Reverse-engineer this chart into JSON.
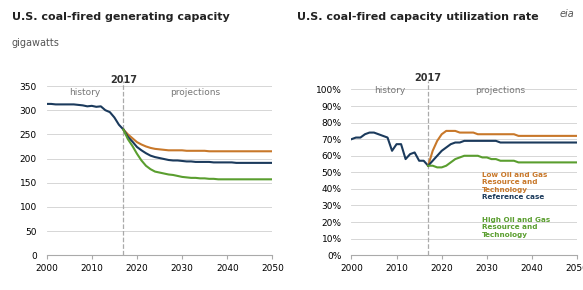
{
  "title1": "U.S. coal-fired generating capacity",
  "ylabel1": "gigawatts",
  "title2": "U.S. coal-fired capacity utilization rate",
  "split_year": 2017,
  "colors": {
    "low": "#c8782a",
    "reference": "#1b3a5c",
    "high": "#5a9e2f"
  },
  "cap_years_history": [
    2000,
    2001,
    2002,
    2003,
    2004,
    2005,
    2006,
    2007,
    2008,
    2009,
    2010,
    2011,
    2012,
    2013,
    2014,
    2015,
    2016,
    2017
  ],
  "cap_history": [
    313,
    313,
    312,
    312,
    312,
    312,
    312,
    311,
    310,
    308,
    309,
    307,
    308,
    300,
    296,
    285,
    270,
    260
  ],
  "cap_years_proj": [
    2017,
    2018,
    2019,
    2020,
    2021,
    2022,
    2023,
    2024,
    2025,
    2026,
    2027,
    2028,
    2029,
    2030,
    2031,
    2032,
    2033,
    2034,
    2035,
    2036,
    2037,
    2038,
    2039,
    2040,
    2041,
    2042,
    2043,
    2044,
    2045,
    2046,
    2047,
    2048,
    2049,
    2050
  ],
  "cap_low": [
    260,
    250,
    242,
    234,
    229,
    225,
    222,
    220,
    219,
    218,
    217,
    217,
    217,
    217,
    216,
    216,
    216,
    216,
    216,
    215,
    215,
    215,
    215,
    215,
    215,
    215,
    215,
    215,
    215,
    215,
    215,
    215,
    215,
    215
  ],
  "cap_ref": [
    260,
    245,
    235,
    224,
    217,
    211,
    206,
    203,
    201,
    199,
    197,
    196,
    196,
    195,
    194,
    194,
    193,
    193,
    193,
    193,
    192,
    192,
    192,
    192,
    192,
    191,
    191,
    191,
    191,
    191,
    191,
    191,
    191,
    191
  ],
  "cap_high": [
    260,
    240,
    226,
    210,
    196,
    185,
    178,
    173,
    171,
    169,
    167,
    166,
    164,
    162,
    161,
    160,
    160,
    159,
    159,
    158,
    158,
    157,
    157,
    157,
    157,
    157,
    157,
    157,
    157,
    157,
    157,
    157,
    157,
    157
  ],
  "util_years_history": [
    2000,
    2001,
    2002,
    2003,
    2004,
    2005,
    2006,
    2007,
    2008,
    2009,
    2010,
    2011,
    2012,
    2013,
    2014,
    2015,
    2016,
    2017
  ],
  "util_history": [
    0.7,
    0.71,
    0.71,
    0.73,
    0.74,
    0.74,
    0.73,
    0.72,
    0.71,
    0.63,
    0.67,
    0.67,
    0.58,
    0.61,
    0.62,
    0.57,
    0.57,
    0.54
  ],
  "util_years_proj": [
    2017,
    2018,
    2019,
    2020,
    2021,
    2022,
    2023,
    2024,
    2025,
    2026,
    2027,
    2028,
    2029,
    2030,
    2031,
    2032,
    2033,
    2034,
    2035,
    2036,
    2037,
    2038,
    2039,
    2040,
    2041,
    2042,
    2043,
    2044,
    2045,
    2046,
    2047,
    2048,
    2049,
    2050
  ],
  "util_low": [
    0.54,
    0.63,
    0.69,
    0.73,
    0.75,
    0.75,
    0.75,
    0.74,
    0.74,
    0.74,
    0.74,
    0.73,
    0.73,
    0.73,
    0.73,
    0.73,
    0.73,
    0.73,
    0.73,
    0.73,
    0.72,
    0.72,
    0.72,
    0.72,
    0.72,
    0.72,
    0.72,
    0.72,
    0.72,
    0.72,
    0.72,
    0.72,
    0.72,
    0.72
  ],
  "util_ref": [
    0.54,
    0.57,
    0.6,
    0.63,
    0.65,
    0.67,
    0.68,
    0.68,
    0.69,
    0.69,
    0.69,
    0.69,
    0.69,
    0.69,
    0.69,
    0.69,
    0.68,
    0.68,
    0.68,
    0.68,
    0.68,
    0.68,
    0.68,
    0.68,
    0.68,
    0.68,
    0.68,
    0.68,
    0.68,
    0.68,
    0.68,
    0.68,
    0.68,
    0.68
  ],
  "util_high": [
    0.54,
    0.54,
    0.53,
    0.53,
    0.54,
    0.56,
    0.58,
    0.59,
    0.6,
    0.6,
    0.6,
    0.6,
    0.59,
    0.59,
    0.58,
    0.58,
    0.57,
    0.57,
    0.57,
    0.57,
    0.56,
    0.56,
    0.56,
    0.56,
    0.56,
    0.56,
    0.56,
    0.56,
    0.56,
    0.56,
    0.56,
    0.56,
    0.56,
    0.56
  ],
  "legend_labels": {
    "low": "Low Oil and Gas\nResource and\nTechnology",
    "reference": "Reference case",
    "high": "High Oil and Gas\nResource and\nTechnology"
  },
  "bg_color": "#ffffff",
  "grid_color": "#d0d0d0"
}
